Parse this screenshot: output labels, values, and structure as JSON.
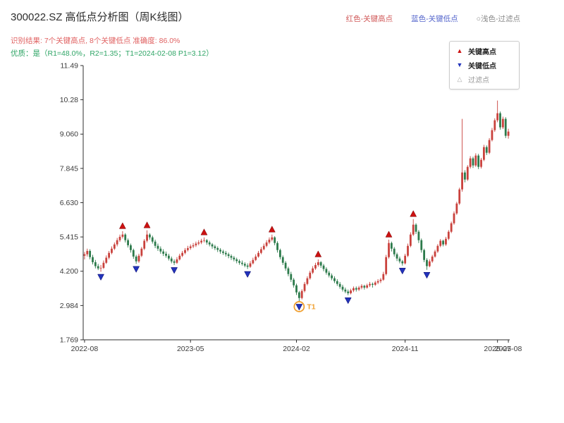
{
  "header": {
    "title": "300022.SZ 高低点分析图（周K线图）",
    "result_line": "识别结果: 7个关键高点, 8个关键低点  准确度: 86.0%",
    "quality_line": "优质：是（R1=48.0%，R2=1.35；T1=2024-02-08 P1=3.12）",
    "top_legend": [
      {
        "label": "红色-关键高点",
        "color": "#d05858"
      },
      {
        "label": "蓝色-关键低点",
        "color": "#5566cc"
      },
      {
        "label": "○浅色-过滤点",
        "color": "#8a8a8a"
      }
    ]
  },
  "legend_box": {
    "items": [
      {
        "label": "关键高点",
        "marker": "triangle-up",
        "color": "#cc1111"
      },
      {
        "label": "关键低点",
        "marker": "triangle-down",
        "color": "#2233bb"
      },
      {
        "label": "过滤点",
        "marker": "triangle-hollow",
        "color": "#aaaaaa"
      }
    ]
  },
  "chart_data": {
    "type": "candlestick",
    "symbol": "300022.SZ",
    "interval": "weekly",
    "start_date": "2022-08-01",
    "y_ticks": [
      "11.49",
      "10.28",
      "9.060",
      "7.845",
      "6.630",
      "5.415",
      "4.200",
      "2.984",
      "1.769"
    ],
    "y_range": [
      1.769,
      11.49
    ],
    "x_ticks": [
      {
        "index": 0,
        "label": "2022-08"
      },
      {
        "index": 39,
        "label": "2023-05"
      },
      {
        "index": 78,
        "label": "2024-02"
      },
      {
        "index": 118,
        "label": "2024-11"
      },
      {
        "index": 152,
        "label": "2025-07"
      },
      {
        "index": 156,
        "label": "2025-08"
      }
    ],
    "candles": [
      [
        4.75,
        4.88,
        4.62,
        4.8
      ],
      [
        4.8,
        5.0,
        4.72,
        4.92
      ],
      [
        4.92,
        4.98,
        4.62,
        4.7
      ],
      [
        4.7,
        4.78,
        4.44,
        4.52
      ],
      [
        4.52,
        4.6,
        4.3,
        4.38
      ],
      [
        4.38,
        4.46,
        4.24,
        4.3
      ],
      [
        4.3,
        4.42,
        4.18,
        4.32
      ],
      [
        4.32,
        4.58,
        4.28,
        4.5
      ],
      [
        4.5,
        4.76,
        4.46,
        4.68
      ],
      [
        4.68,
        4.92,
        4.62,
        4.85
      ],
      [
        4.85,
        5.08,
        4.8,
        5.0
      ],
      [
        5.0,
        5.22,
        4.95,
        5.15
      ],
      [
        5.15,
        5.38,
        5.08,
        5.3
      ],
      [
        5.3,
        5.5,
        5.24,
        5.42
      ],
      [
        5.42,
        5.62,
        5.36,
        5.5
      ],
      [
        5.5,
        5.55,
        5.22,
        5.3
      ],
      [
        5.3,
        5.36,
        5.04,
        5.12
      ],
      [
        5.12,
        5.18,
        4.86,
        4.95
      ],
      [
        4.95,
        5.0,
        4.64,
        4.72
      ],
      [
        4.72,
        4.78,
        4.46,
        4.55
      ],
      [
        4.55,
        4.82,
        4.5,
        4.75
      ],
      [
        4.75,
        5.06,
        4.7,
        5.0
      ],
      [
        5.0,
        5.34,
        4.95,
        5.28
      ],
      [
        5.28,
        5.65,
        5.22,
        5.5
      ],
      [
        5.5,
        5.55,
        5.32,
        5.4
      ],
      [
        5.4,
        5.46,
        5.18,
        5.25
      ],
      [
        5.25,
        5.32,
        5.02,
        5.1
      ],
      [
        5.1,
        5.18,
        4.92,
        5.0
      ],
      [
        5.0,
        5.08,
        4.82,
        4.9
      ],
      [
        4.9,
        4.98,
        4.74,
        4.82
      ],
      [
        4.82,
        4.9,
        4.68,
        4.75
      ],
      [
        4.75,
        4.82,
        4.58,
        4.65
      ],
      [
        4.65,
        4.72,
        4.48,
        4.55
      ],
      [
        4.55,
        4.62,
        4.42,
        4.5
      ],
      [
        4.5,
        4.7,
        4.46,
        4.62
      ],
      [
        4.62,
        4.82,
        4.58,
        4.75
      ],
      [
        4.75,
        4.92,
        4.7,
        4.85
      ],
      [
        4.85,
        5.02,
        4.8,
        4.95
      ],
      [
        4.95,
        5.1,
        4.9,
        5.02
      ],
      [
        5.02,
        5.15,
        4.96,
        5.08
      ],
      [
        5.08,
        5.2,
        5.02,
        5.12
      ],
      [
        5.12,
        5.25,
        5.06,
        5.18
      ],
      [
        5.18,
        5.3,
        5.12,
        5.22
      ],
      [
        5.22,
        5.35,
        5.16,
        5.28
      ],
      [
        5.28,
        5.4,
        5.22,
        5.3
      ],
      [
        5.3,
        5.34,
        5.14,
        5.22
      ],
      [
        5.22,
        5.28,
        5.08,
        5.15
      ],
      [
        5.15,
        5.2,
        5.0,
        5.08
      ],
      [
        5.08,
        5.14,
        4.95,
        5.02
      ],
      [
        5.02,
        5.08,
        4.88,
        4.96
      ],
      [
        4.96,
        5.02,
        4.82,
        4.9
      ],
      [
        4.9,
        4.96,
        4.78,
        4.85
      ],
      [
        4.85,
        4.92,
        4.72,
        4.8
      ],
      [
        4.8,
        4.86,
        4.66,
        4.74
      ],
      [
        4.74,
        4.8,
        4.6,
        4.68
      ],
      [
        4.68,
        4.74,
        4.55,
        4.62
      ],
      [
        4.62,
        4.68,
        4.48,
        4.56
      ],
      [
        4.56,
        4.62,
        4.43,
        4.5
      ],
      [
        4.5,
        4.58,
        4.4,
        4.46
      ],
      [
        4.46,
        4.52,
        4.34,
        4.4
      ],
      [
        4.4,
        4.48,
        4.28,
        4.36
      ],
      [
        4.36,
        4.56,
        4.32,
        4.48
      ],
      [
        4.48,
        4.68,
        4.44,
        4.6
      ],
      [
        4.6,
        4.8,
        4.56,
        4.72
      ],
      [
        4.72,
        4.92,
        4.68,
        4.85
      ],
      [
        4.85,
        5.06,
        4.8,
        4.98
      ],
      [
        4.98,
        5.18,
        4.94,
        5.1
      ],
      [
        5.1,
        5.3,
        5.05,
        5.22
      ],
      [
        5.22,
        5.4,
        5.16,
        5.32
      ],
      [
        5.32,
        5.5,
        5.26,
        5.4
      ],
      [
        5.4,
        5.44,
        5.12,
        5.2
      ],
      [
        5.2,
        5.26,
        4.86,
        4.95
      ],
      [
        4.95,
        5.0,
        4.62,
        4.7
      ],
      [
        4.7,
        4.76,
        4.42,
        4.5
      ],
      [
        4.5,
        4.56,
        4.22,
        4.3
      ],
      [
        4.3,
        4.36,
        4.02,
        4.1
      ],
      [
        4.1,
        4.18,
        3.82,
        3.9
      ],
      [
        3.9,
        3.96,
        3.62,
        3.7
      ],
      [
        3.7,
        3.76,
        3.36,
        3.45
      ],
      [
        3.45,
        3.5,
        3.12,
        3.25
      ],
      [
        3.25,
        3.56,
        3.2,
        3.5
      ],
      [
        3.5,
        3.82,
        3.45,
        3.75
      ],
      [
        3.75,
        4.02,
        3.7,
        3.95
      ],
      [
        3.95,
        4.22,
        3.9,
        4.15
      ],
      [
        4.15,
        4.38,
        4.1,
        4.3
      ],
      [
        4.3,
        4.5,
        4.25,
        4.42
      ],
      [
        4.42,
        4.62,
        4.36,
        4.52
      ],
      [
        4.52,
        4.56,
        4.32,
        4.4
      ],
      [
        4.4,
        4.46,
        4.2,
        4.28
      ],
      [
        4.28,
        4.34,
        4.08,
        4.15
      ],
      [
        4.15,
        4.22,
        3.98,
        4.05
      ],
      [
        4.05,
        4.12,
        3.88,
        3.95
      ],
      [
        3.95,
        4.02,
        3.78,
        3.85
      ],
      [
        3.85,
        3.92,
        3.68,
        3.75
      ],
      [
        3.75,
        3.82,
        3.58,
        3.65
      ],
      [
        3.65,
        3.72,
        3.48,
        3.55
      ],
      [
        3.55,
        3.62,
        3.42,
        3.48
      ],
      [
        3.48,
        3.55,
        3.35,
        3.42
      ],
      [
        3.42,
        3.58,
        3.38,
        3.52
      ],
      [
        3.52,
        3.66,
        3.46,
        3.6
      ],
      [
        3.6,
        3.66,
        3.48,
        3.55
      ],
      [
        3.55,
        3.68,
        3.5,
        3.62
      ],
      [
        3.62,
        3.74,
        3.56,
        3.68
      ],
      [
        3.68,
        3.72,
        3.55,
        3.62
      ],
      [
        3.62,
        3.76,
        3.58,
        3.7
      ],
      [
        3.7,
        3.82,
        3.64,
        3.75
      ],
      [
        3.75,
        3.8,
        3.62,
        3.72
      ],
      [
        3.72,
        3.86,
        3.68,
        3.8
      ],
      [
        3.8,
        3.92,
        3.74,
        3.85
      ],
      [
        3.85,
        3.96,
        3.78,
        3.9
      ],
      [
        3.9,
        4.18,
        3.86,
        4.1
      ],
      [
        4.1,
        4.78,
        4.05,
        4.7
      ],
      [
        4.7,
        5.32,
        4.65,
        5.2
      ],
      [
        5.2,
        5.25,
        4.9,
        5.0
      ],
      [
        5.0,
        5.06,
        4.72,
        4.8
      ],
      [
        4.8,
        4.86,
        4.56,
        4.65
      ],
      [
        4.65,
        4.72,
        4.48,
        4.55
      ],
      [
        4.55,
        4.6,
        4.4,
        4.48
      ],
      [
        4.48,
        4.82,
        4.44,
        4.75
      ],
      [
        4.75,
        5.18,
        4.7,
        5.1
      ],
      [
        5.1,
        5.58,
        5.05,
        5.5
      ],
      [
        5.5,
        6.05,
        5.45,
        5.85
      ],
      [
        5.85,
        5.9,
        5.52,
        5.6
      ],
      [
        5.6,
        5.66,
        5.2,
        5.3
      ],
      [
        5.3,
        5.36,
        4.86,
        4.95
      ],
      [
        4.95,
        5.0,
        4.52,
        4.6
      ],
      [
        4.6,
        4.66,
        4.25,
        4.38
      ],
      [
        4.38,
        4.62,
        4.34,
        4.55
      ],
      [
        4.55,
        4.78,
        4.5,
        4.72
      ],
      [
        4.72,
        4.96,
        4.68,
        4.9
      ],
      [
        4.9,
        5.16,
        4.85,
        5.1
      ],
      [
        5.1,
        5.34,
        5.05,
        5.28
      ],
      [
        5.28,
        5.32,
        5.08,
        5.15
      ],
      [
        5.15,
        5.42,
        5.1,
        5.35
      ],
      [
        5.35,
        5.66,
        5.3,
        5.6
      ],
      [
        5.6,
        5.96,
        5.55,
        5.9
      ],
      [
        5.9,
        6.32,
        5.85,
        6.25
      ],
      [
        6.25,
        6.66,
        6.2,
        6.6
      ],
      [
        6.6,
        7.16,
        6.55,
        7.1
      ],
      [
        7.1,
        9.6,
        7.02,
        7.7
      ],
      [
        7.7,
        7.78,
        7.35,
        7.45
      ],
      [
        7.45,
        7.96,
        7.4,
        7.9
      ],
      [
        7.9,
        8.28,
        7.84,
        8.2
      ],
      [
        8.2,
        8.26,
        7.86,
        7.95
      ],
      [
        7.95,
        8.38,
        7.9,
        8.3
      ],
      [
        8.3,
        8.36,
        7.82,
        7.9
      ],
      [
        7.9,
        8.22,
        7.84,
        8.15
      ],
      [
        8.15,
        8.68,
        8.1,
        8.6
      ],
      [
        8.6,
        8.66,
        8.32,
        8.4
      ],
      [
        8.4,
        8.92,
        8.35,
        8.85
      ],
      [
        8.85,
        9.28,
        8.8,
        9.2
      ],
      [
        9.2,
        9.62,
        9.14,
        9.55
      ],
      [
        9.55,
        10.25,
        9.48,
        9.8
      ],
      [
        9.8,
        9.86,
        9.22,
        9.3
      ],
      [
        9.3,
        9.68,
        9.24,
        9.6
      ],
      [
        9.6,
        9.66,
        8.92,
        9.0
      ],
      [
        9.0,
        9.25,
        8.9,
        9.15
      ]
    ],
    "key_highs": [
      {
        "index": 14,
        "price": 5.62
      },
      {
        "index": 23,
        "price": 5.65
      },
      {
        "index": 44,
        "price": 5.4
      },
      {
        "index": 69,
        "price": 5.5
      },
      {
        "index": 86,
        "price": 4.62
      },
      {
        "index": 112,
        "price": 5.32
      },
      {
        "index": 121,
        "price": 6.05
      }
    ],
    "key_lows": [
      {
        "index": 6,
        "price": 4.18
      },
      {
        "index": 19,
        "price": 4.46
      },
      {
        "index": 33,
        "price": 4.42
      },
      {
        "index": 60,
        "price": 4.28
      },
      {
        "index": 79,
        "price": 3.12
      },
      {
        "index": 97,
        "price": 3.35
      },
      {
        "index": 117,
        "price": 4.4
      },
      {
        "index": 126,
        "price": 4.25
      }
    ],
    "t1": {
      "index": 79,
      "price": 3.12,
      "label": "T1",
      "date": "2024-02-08"
    },
    "colors": {
      "up": "#c9413c",
      "down": "#2c7a4b",
      "high_marker": "#cc1111",
      "low_marker": "#2233bb",
      "t1": "#f0a030",
      "axis": "#2f2f2f"
    }
  }
}
